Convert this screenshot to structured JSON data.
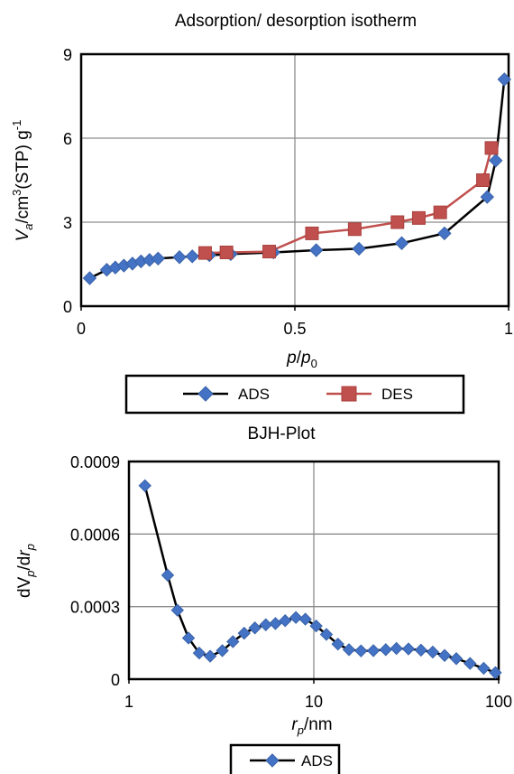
{
  "chart_data": [
    {
      "type": "line",
      "title": "Adsorption/ desorption isotherm",
      "ylabel_parts": {
        "main": "V",
        "sub": "a",
        "unit": "/cm",
        "sup": "3",
        "tail": "(STP) g",
        "sup2": "-1"
      },
      "xlabel_parts": {
        "main": "p",
        "slash": "/",
        "p0": "p",
        "sub0": "0"
      },
      "xlim": [
        0,
        1
      ],
      "ylim": [
        0,
        9
      ],
      "x_ticks": [
        0,
        0.5,
        1
      ],
      "x_tick_labels": [
        "0",
        "0.5",
        "1"
      ],
      "y_ticks": [
        0,
        3,
        6,
        9
      ],
      "y_tick_labels": [
        "0",
        "3",
        "6",
        "9"
      ],
      "grid": true,
      "legend_position": "bottom",
      "series": [
        {
          "name": "ADS",
          "color": "#4472c4",
          "line_color": "#000000",
          "marker": "diamond",
          "x": [
            0.02,
            0.06,
            0.08,
            0.1,
            0.12,
            0.14,
            0.16,
            0.18,
            0.23,
            0.26,
            0.3,
            0.35,
            0.45,
            0.55,
            0.65,
            0.75,
            0.85,
            0.95,
            0.97,
            0.99
          ],
          "y": [
            1.0,
            1.3,
            1.38,
            1.45,
            1.52,
            1.6,
            1.65,
            1.7,
            1.75,
            1.78,
            1.82,
            1.86,
            1.92,
            2.0,
            2.05,
            2.25,
            2.6,
            3.9,
            5.2,
            8.1
          ]
        },
        {
          "name": "DES",
          "color": "#c0504d",
          "line_color": "#c0504d",
          "marker": "square",
          "x": [
            0.29,
            0.34,
            0.44,
            0.54,
            0.64,
            0.74,
            0.79,
            0.84,
            0.94,
            0.96
          ],
          "y": [
            1.9,
            1.92,
            1.95,
            2.6,
            2.75,
            3.0,
            3.15,
            3.35,
            4.5,
            5.65
          ]
        }
      ]
    },
    {
      "type": "line",
      "title": "BJH-Plot",
      "ylabel_parts": {
        "d": "dV",
        "sub": "p",
        "slash": "/d",
        "r": "r",
        "sub2": "p"
      },
      "xlabel_parts": {
        "main": "r",
        "sub": "p",
        "unit": "/nm"
      },
      "xscale": "log",
      "xlim": [
        1,
        100
      ],
      "ylim": [
        0,
        0.0009
      ],
      "x_ticks": [
        1,
        10,
        100
      ],
      "x_tick_labels": [
        "1",
        "10",
        "100"
      ],
      "y_ticks": [
        0,
        0.0003,
        0.0006,
        0.0009
      ],
      "y_tick_labels": [
        "0",
        "0.0003",
        "0.0006",
        "0.0009"
      ],
      "grid": true,
      "legend_position": "bottom",
      "series": [
        {
          "name": "ADS",
          "color": "#4472c4",
          "line_color": "#000000",
          "marker": "diamond",
          "x": [
            1.22,
            1.62,
            1.83,
            2.1,
            2.4,
            2.75,
            3.2,
            3.65,
            4.2,
            4.8,
            5.5,
            6.2,
            7.0,
            8.0,
            9.0,
            10.3,
            11.7,
            13.5,
            15.5,
            18.0,
            21.0,
            24.5,
            28.0,
            32.5,
            38.0,
            44.0,
            51.0,
            59.0,
            70.0,
            83.0,
            96.0
          ],
          "y": [
            0.0008,
            0.00043,
            0.000285,
            0.00017,
            0.000108,
            9.5e-05,
            0.000118,
            0.000155,
            0.00019,
            0.000212,
            0.000225,
            0.00023,
            0.000242,
            0.000255,
            0.000248,
            0.00022,
            0.000185,
            0.000145,
            0.000122,
            0.000117,
            0.000118,
            0.000122,
            0.000127,
            0.000125,
            0.00012,
            0.000112,
            9.8e-05,
            8.5e-05,
            6.5e-05,
            4.5e-05,
            2.7e-05
          ]
        }
      ]
    }
  ]
}
